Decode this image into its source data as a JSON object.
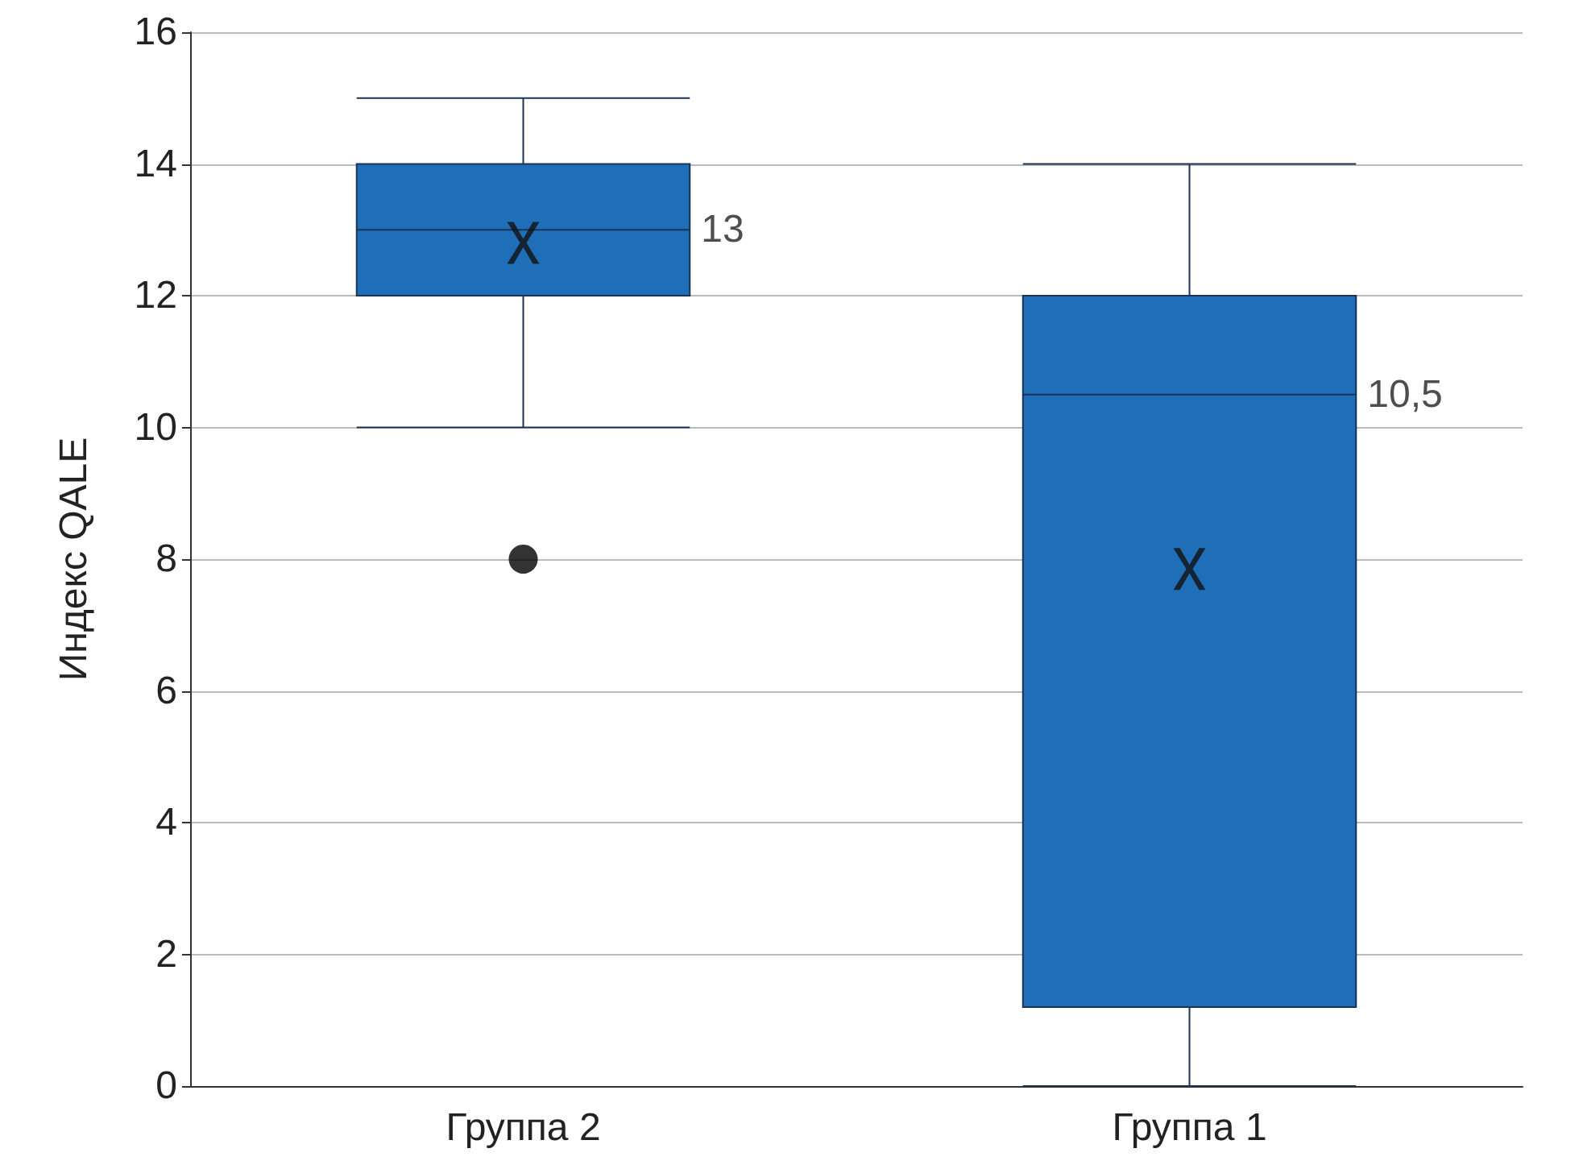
{
  "chart_data": {
    "type": "box",
    "ylabel": "Индекс QALE",
    "categories": [
      "Группа 2",
      "Группа 1"
    ],
    "series": [
      {
        "color": "#1f6fb8",
        "boxes": [
          {
            "low": 10,
            "q1": 12,
            "median": 13,
            "q3": 14,
            "high": 15,
            "mean": 12.8,
            "outliers": [
              8
            ]
          },
          {
            "low": 0,
            "q1": 1.2,
            "median": 10.5,
            "q3": 12,
            "high": 14,
            "mean": 7.85
          }
        ]
      }
    ],
    "annotations": [
      "13",
      "10,5"
    ],
    "ylim": [
      0,
      16
    ],
    "yticks": [
      0,
      2,
      4,
      6,
      8,
      10,
      12,
      14,
      16
    ],
    "grid": "y"
  }
}
